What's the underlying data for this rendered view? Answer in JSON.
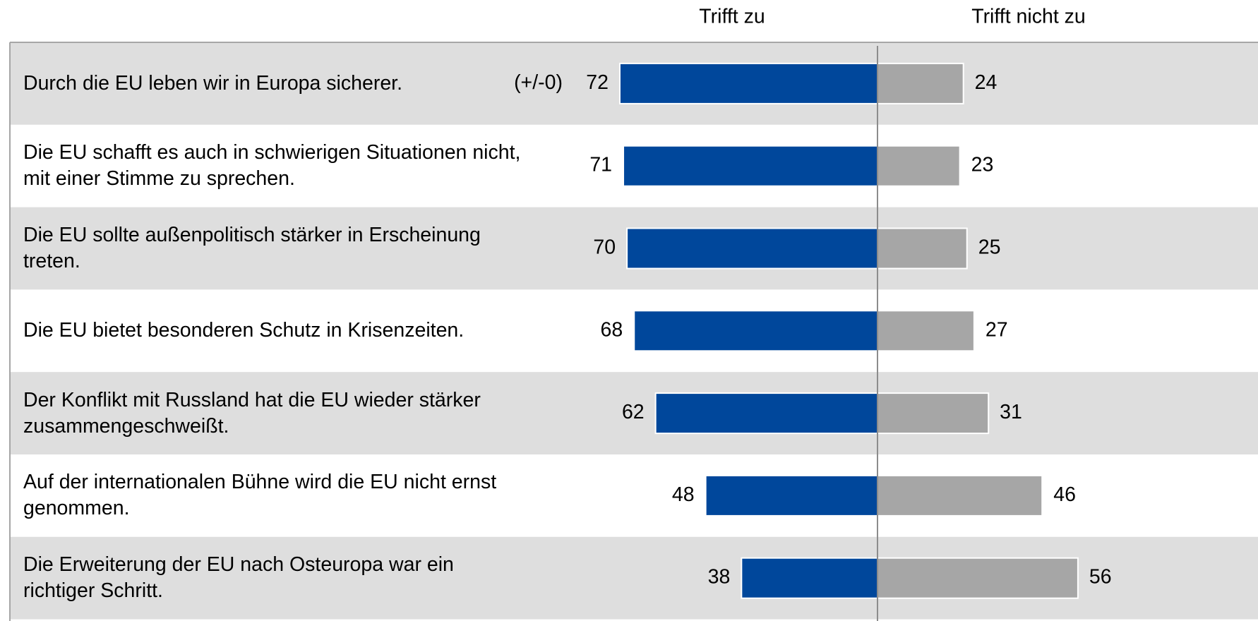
{
  "chart_data": {
    "type": "diverging_bar",
    "categories": [
      "Durch die EU leben wir in Europa sicherer.",
      "Die EU schafft es auch in schwierigen Situationen nicht, mit einer Stimme zu sprechen.",
      "Die EU sollte außenpolitisch stärker in Erscheinung treten.",
      "Die EU bietet besonderen Schutz in Krisenzeiten.",
      "Der Konflikt mit Russland hat die EU wieder stärker zusammengeschweißt.",
      "Auf der internationalen Bühne wird die EU nicht ernst genommen.",
      "Die Erweiterung der EU nach Osteuropa war ein richtiger Schritt."
    ],
    "series": [
      {
        "name": "Trifft zu",
        "color": "#00479b",
        "values": [
          72,
          71,
          70,
          68,
          62,
          48,
          38
        ]
      },
      {
        "name": "Trifft nicht zu",
        "color": "#a6a6a6",
        "values": [
          24,
          23,
          25,
          27,
          31,
          46,
          56
        ]
      }
    ],
    "value_notes": [
      "(+/-0)",
      null,
      null,
      null,
      null,
      null,
      null
    ]
  }
}
